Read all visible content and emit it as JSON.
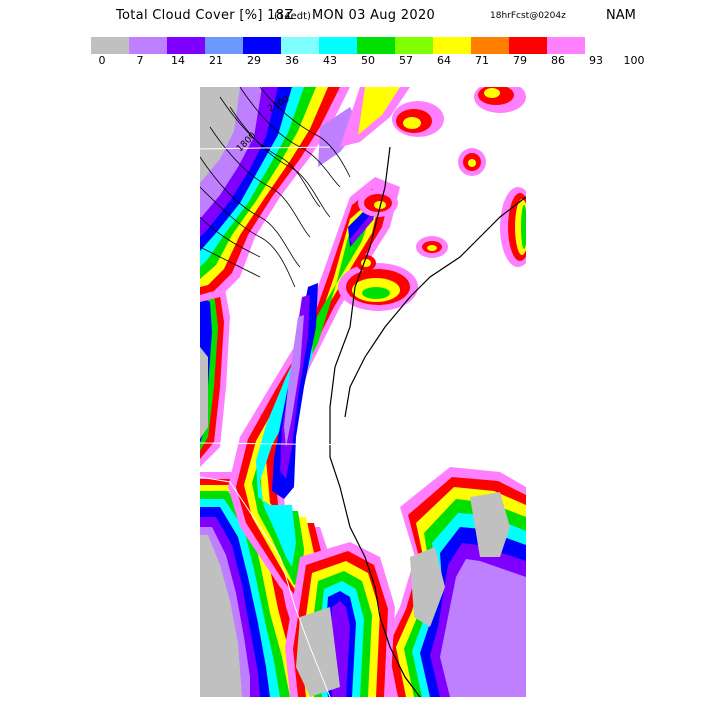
{
  "header": {
    "title_main": "Total Cloud Cover [%] 18Z",
    "title_local": "(14edt)",
    "title_date": "MON 03 Aug 2020",
    "forecast": "18hrFcst@0204z",
    "model": "NAM"
  },
  "legend": {
    "colors": [
      "#c0c0c0",
      "#bf80ff",
      "#8000ff",
      "#6a98ff",
      "#0000ff",
      "#80ffff",
      "#00ffff",
      "#00e000",
      "#80ff00",
      "#ffff00",
      "#ff8000",
      "#ff0000",
      "#ff80ff"
    ],
    "ticks": [
      "0",
      "7",
      "14",
      "21",
      "29",
      "36",
      "43",
      "50",
      "57",
      "64",
      "71",
      "79",
      "86",
      "93",
      "100"
    ]
  },
  "map": {
    "contour_labels": [
      "2100",
      "1800"
    ]
  }
}
